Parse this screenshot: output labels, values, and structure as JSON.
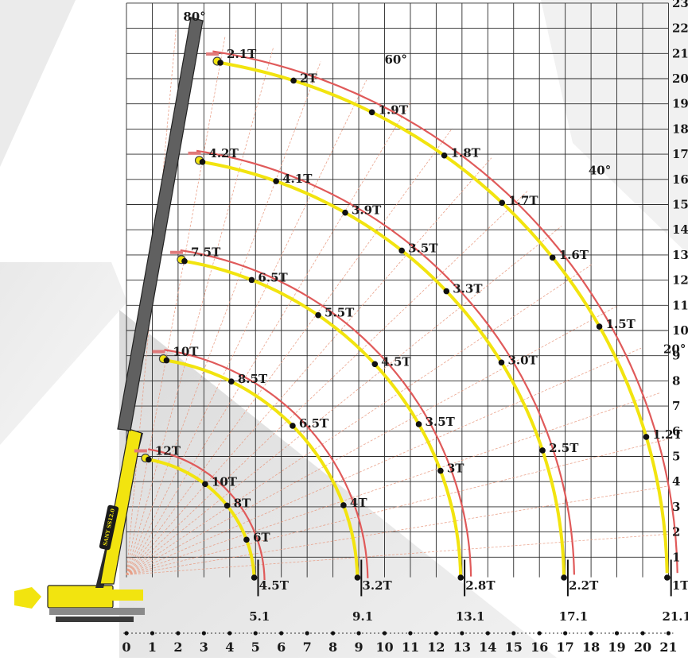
{
  "chart_data": {
    "type": "diagram",
    "x_ticks": [
      "0",
      "1",
      "2",
      "3",
      "4",
      "5",
      "6",
      "7",
      "8",
      "9",
      "10",
      "11",
      "12",
      "13",
      "14",
      "15",
      "16",
      "17",
      "18",
      "19",
      "20",
      "21"
    ],
    "y_ticks": [
      "1",
      "2",
      "3",
      "4",
      "5",
      "6",
      "7",
      "8",
      "9",
      "10",
      "11",
      "12",
      "13",
      "14",
      "15",
      "16",
      "17",
      "18",
      "19",
      "20",
      "21",
      "22",
      "23"
    ],
    "angle_labels": [
      {
        "text": "80°",
        "x": 2.2,
        "y": 22.3
      },
      {
        "text": "60°",
        "x": 10.0,
        "y": 20.6
      },
      {
        "text": "40°",
        "x": 17.9,
        "y": 16.2
      },
      {
        "text": "20°",
        "x": 20.8,
        "y": 9.1
      }
    ],
    "angles_deg": [
      80,
      60,
      40,
      20
    ],
    "radius_labels": [
      {
        "text": "5.1",
        "x": 5.0
      },
      {
        "text": "9.1",
        "x": 9.0
      },
      {
        "text": "13.1",
        "x": 13.0
      },
      {
        "text": "17.1",
        "x": 17.0
      },
      {
        "text": "21.1",
        "x": 21.0
      }
    ],
    "load_curves": [
      {
        "boom_m": 5.1,
        "points": [
          {
            "label": "12T",
            "deg": 80
          },
          {
            "label": "10T",
            "deg": 52
          },
          {
            "label": "8T",
            "deg": 38
          },
          {
            "label": "6T",
            "deg": 20
          },
          {
            "label": "4.5T",
            "deg": 0
          }
        ]
      },
      {
        "boom_m": 9.1,
        "points": [
          {
            "label": "10T",
            "deg": 80
          },
          {
            "label": "8.5T",
            "deg": 63
          },
          {
            "label": "6.5T",
            "deg": 44
          },
          {
            "label": "4T",
            "deg": 20
          },
          {
            "label": "3.2T",
            "deg": 0
          }
        ]
      },
      {
        "boom_m": 13.1,
        "points": [
          {
            "label": "7.5T",
            "deg": 80
          },
          {
            "label": "6.5T",
            "deg": 68
          },
          {
            "label": "5.5T",
            "deg": 55
          },
          {
            "label": "4.5T",
            "deg": 42
          },
          {
            "label": "3.5T",
            "deg": 29
          },
          {
            "label": "3T",
            "deg": 20
          },
          {
            "label": "2.8T",
            "deg": 0
          }
        ]
      },
      {
        "boom_m": 17.1,
        "points": [
          {
            "label": "4.2T",
            "deg": 80
          },
          {
            "label": "4.1T",
            "deg": 70
          },
          {
            "label": "3.9T",
            "deg": 60
          },
          {
            "label": "3.5T",
            "deg": 51
          },
          {
            "label": "3.3T",
            "deg": 43
          },
          {
            "label": "3.0T",
            "deg": 31
          },
          {
            "label": "2.5T",
            "deg": 18
          },
          {
            "label": "2.2T",
            "deg": 0
          }
        ]
      },
      {
        "boom_m": 21.1,
        "points": [
          {
            "label": "2.1T",
            "deg": 80
          },
          {
            "label": "2T",
            "deg": 72
          },
          {
            "label": "1.9T",
            "deg": 63
          },
          {
            "label": "1.8T",
            "deg": 54
          },
          {
            "label": "1.7T",
            "deg": 46
          },
          {
            "label": "1.6T",
            "deg": 38
          },
          {
            "label": "1.5T",
            "deg": 29
          },
          {
            "label": "1.2T",
            "deg": 16
          },
          {
            "label": "1T",
            "deg": 0
          }
        ]
      }
    ],
    "xlim": [
      0,
      21
    ],
    "ylim": [
      0,
      23
    ],
    "grid": true
  },
  "crane": {
    "brand_text": "SANY SS12.0",
    "body_color": "#f2e40f",
    "boom_color": "#606060"
  },
  "colors": {
    "background": "#ffffff",
    "grid": "#2a2a2a",
    "outer_arc": "#e05a5a",
    "inner_arc": "#f2e40f",
    "radial_line": "#e89a80",
    "dot": "#111111"
  }
}
